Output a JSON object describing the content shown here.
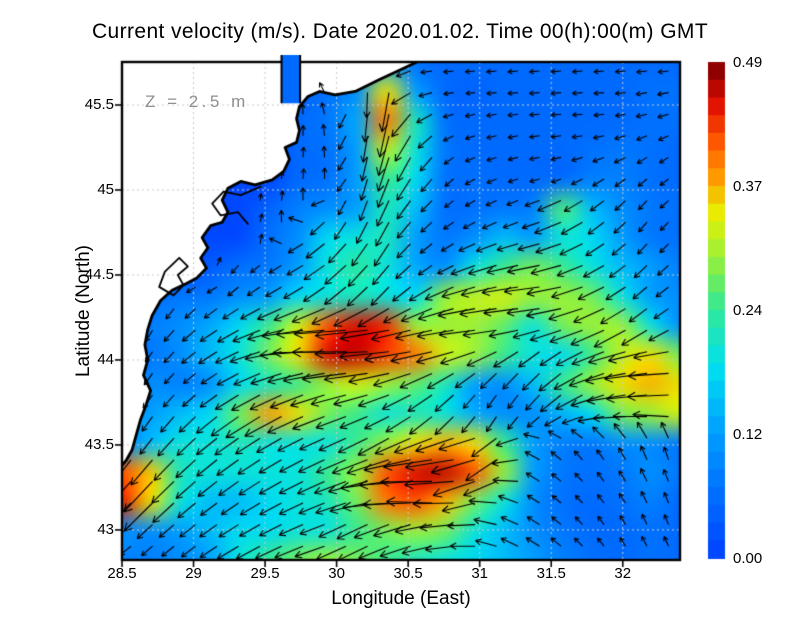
{
  "title": "Current velocity (m/s). Date 2020.01.02. Time 00(h):00(m) GMT",
  "annotation": {
    "text": "Z = 2.5 m",
    "color": "#8f8f8f"
  },
  "axes": {
    "x": {
      "label": "Longitude (East)",
      "range": [
        28.5,
        32.4
      ],
      "ticks": [
        28.5,
        29,
        29.5,
        30,
        30.5,
        31,
        31.5,
        32
      ],
      "tick_labels": [
        "28.5",
        "29",
        "29.5",
        "30",
        "30.5",
        "31",
        "31.5",
        "32"
      ]
    },
    "y": {
      "label": "Latitude (North)",
      "range": [
        42.823,
        45.753
      ],
      "ticks": [
        45.5,
        45,
        44.5,
        44,
        43.5,
        43
      ],
      "tick_labels": [
        "45.5",
        "45",
        "44.5",
        "44",
        "43.5",
        "43"
      ]
    }
  },
  "colorbar": {
    "min": 0,
    "max": 0.49,
    "labels": [
      "0.49",
      "0.37",
      "0.24",
      "0.12",
      "0.00"
    ],
    "stops": [
      [
        0,
        "#0048ff"
      ],
      [
        0.12,
        "#0070ff"
      ],
      [
        0.25,
        "#00a0ff"
      ],
      [
        0.38,
        "#00e0f0"
      ],
      [
        0.5,
        "#30e898"
      ],
      [
        0.6,
        "#90f040"
      ],
      [
        0.7,
        "#e8f000"
      ],
      [
        0.78,
        "#ff9800"
      ],
      [
        0.86,
        "#ff5000"
      ],
      [
        0.93,
        "#e01000"
      ],
      [
        1,
        "#900000"
      ]
    ]
  },
  "style": {
    "grid_color": "#cccccc",
    "coast_color": "#000000",
    "arrow_color": "#000000",
    "land_color": "#ffffff",
    "frame_color": "#000000"
  },
  "chart_data": {
    "type": "heatmap",
    "overlays": [
      "quiver",
      "coastline"
    ],
    "units": "m/s",
    "depth_m": 2.5,
    "date": "2020.01.02",
    "time_gmt": "00:00",
    "grid": {
      "nx": 20,
      "ny": 18,
      "lon": [
        28.5,
        32.4
      ],
      "lat": [
        45.753,
        42.823
      ]
    },
    "magnitude": [
      [
        0,
        0,
        0,
        0,
        0,
        0,
        0.05,
        0.05,
        0.08,
        0.12,
        0.06,
        0.05,
        0.05,
        0.05,
        0.05,
        0.05,
        0.05,
        0.05,
        0.05,
        0.05
      ],
      [
        0,
        0,
        0,
        0,
        0,
        0,
        0.04,
        0.06,
        0.1,
        0.35,
        0.12,
        0.05,
        0.04,
        0.05,
        0.05,
        0.05,
        0.05,
        0.05,
        0.06,
        0.06
      ],
      [
        0,
        0,
        0,
        0,
        0,
        0,
        0.05,
        0.07,
        0.13,
        0.4,
        0.22,
        0.06,
        0.05,
        0.05,
        0.05,
        0.05,
        0.05,
        0.05,
        0.06,
        0.06
      ],
      [
        0,
        0,
        0,
        0,
        0,
        0,
        0.05,
        0.06,
        0.12,
        0.32,
        0.2,
        0.07,
        0.05,
        0.05,
        0.05,
        0.05,
        0.06,
        0.07,
        0.06,
        0.05
      ],
      [
        0,
        0,
        0,
        0,
        0,
        0,
        0.05,
        0.06,
        0.12,
        0.25,
        0.18,
        0.06,
        0.06,
        0.05,
        0.05,
        0.05,
        0.08,
        0.08,
        0.06,
        0.05
      ],
      [
        0,
        0,
        0,
        0,
        0,
        0.04,
        0.08,
        0.1,
        0.12,
        0.22,
        0.15,
        0.06,
        0.06,
        0.07,
        0.08,
        0.26,
        0.15,
        0.1,
        0.07,
        0.06
      ],
      [
        0,
        0,
        0,
        0,
        0,
        0.06,
        0.1,
        0.18,
        0.2,
        0.22,
        0.12,
        0.07,
        0.1,
        0.15,
        0.12,
        0.2,
        0.18,
        0.12,
        0.07,
        0.06
      ],
      [
        0,
        0,
        0,
        0.03,
        0.06,
        0.07,
        0.12,
        0.2,
        0.24,
        0.2,
        0.13,
        0.1,
        0.2,
        0.25,
        0.28,
        0.25,
        0.2,
        0.15,
        0.12,
        0.08
      ],
      [
        0,
        0.05,
        0.07,
        0.07,
        0.1,
        0.12,
        0.18,
        0.2,
        0.22,
        0.2,
        0.18,
        0.3,
        0.32,
        0.33,
        0.3,
        0.3,
        0.28,
        0.2,
        0.12,
        0.1
      ],
      [
        0.04,
        0.08,
        0.1,
        0.13,
        0.18,
        0.25,
        0.33,
        0.42,
        0.46,
        0.44,
        0.3,
        0.3,
        0.3,
        0.27,
        0.2,
        0.28,
        0.3,
        0.3,
        0.2,
        0.1
      ],
      [
        0.06,
        0.07,
        0.1,
        0.15,
        0.2,
        0.28,
        0.35,
        0.46,
        0.47,
        0.43,
        0.4,
        0.33,
        0.3,
        0.25,
        0.2,
        0.18,
        0.25,
        0.32,
        0.35,
        0.28
      ],
      [
        0.07,
        0.1,
        0.08,
        0.1,
        0.18,
        0.22,
        0.25,
        0.3,
        0.33,
        0.3,
        0.27,
        0.22,
        0.12,
        0.1,
        0.15,
        0.25,
        0.3,
        0.35,
        0.37,
        0.35
      ],
      [
        0.1,
        0.12,
        0.15,
        0.18,
        0.28,
        0.38,
        0.35,
        0.28,
        0.25,
        0.2,
        0.22,
        0.2,
        0.13,
        0.1,
        0.1,
        0.14,
        0.18,
        0.28,
        0.3,
        0.33
      ],
      [
        0.08,
        0.15,
        0.2,
        0.2,
        0.22,
        0.2,
        0.2,
        0.2,
        0.25,
        0.3,
        0.35,
        0.37,
        0.35,
        0.25,
        0.12,
        0.08,
        0.07,
        0.1,
        0.1,
        0.07
      ],
      [
        0.42,
        0.36,
        0.22,
        0.2,
        0.2,
        0.2,
        0.2,
        0.25,
        0.3,
        0.42,
        0.46,
        0.47,
        0.42,
        0.3,
        0.12,
        0.07,
        0.06,
        0.07,
        0.1,
        0.07
      ],
      [
        0.45,
        0.35,
        0.2,
        0.15,
        0.15,
        0.18,
        0.2,
        0.22,
        0.28,
        0.4,
        0.42,
        0.37,
        0.28,
        0.2,
        0.1,
        0.06,
        0.05,
        0.06,
        0.08,
        0.05
      ],
      [
        0.1,
        0.1,
        0.12,
        0.15,
        0.18,
        0.18,
        0.2,
        0.2,
        0.25,
        0.28,
        0.3,
        0.28,
        0.2,
        0.15,
        0.1,
        0.07,
        0.05,
        0.05,
        0.06,
        0.05
      ],
      [
        0.08,
        0.08,
        0.1,
        0.12,
        0.2,
        0.25,
        0.28,
        0.3,
        0.28,
        0.25,
        0.22,
        0.2,
        0.18,
        0.15,
        0.12,
        0.08,
        0.06,
        0.05,
        0.06,
        0.05
      ]
    ],
    "direction_deg": [
      [
        270,
        270,
        270,
        270,
        270,
        270,
        270,
        250,
        260,
        265,
        185,
        185,
        185,
        185,
        185,
        185,
        185,
        185,
        185,
        185
      ],
      [
        90,
        90,
        90,
        90,
        90,
        90,
        90,
        120,
        270,
        265,
        200,
        190,
        185,
        185,
        185,
        185,
        185,
        185,
        190,
        190
      ],
      [
        90,
        90,
        90,
        90,
        90,
        90,
        90,
        100,
        265,
        260,
        230,
        200,
        195,
        190,
        185,
        185,
        185,
        190,
        195,
        200
      ],
      [
        85,
        85,
        85,
        85,
        85,
        85,
        85,
        95,
        260,
        255,
        240,
        220,
        200,
        195,
        190,
        190,
        195,
        200,
        210,
        210
      ],
      [
        85,
        85,
        85,
        85,
        85,
        85,
        85,
        90,
        255,
        250,
        235,
        225,
        210,
        200,
        195,
        200,
        210,
        215,
        220,
        215
      ],
      [
        80,
        80,
        80,
        80,
        80,
        80,
        85,
        230,
        250,
        245,
        230,
        220,
        210,
        205,
        200,
        205,
        215,
        225,
        230,
        220
      ],
      [
        70,
        70,
        70,
        70,
        70,
        70,
        210,
        220,
        235,
        240,
        225,
        215,
        205,
        200,
        195,
        200,
        210,
        220,
        230,
        225
      ],
      [
        60,
        60,
        60,
        60,
        230,
        215,
        210,
        215,
        225,
        230,
        220,
        210,
        200,
        195,
        190,
        195,
        205,
        215,
        225,
        220
      ],
      [
        250,
        250,
        230,
        220,
        215,
        210,
        210,
        215,
        220,
        225,
        215,
        205,
        195,
        190,
        185,
        190,
        200,
        210,
        220,
        215
      ],
      [
        260,
        240,
        225,
        215,
        210,
        200,
        190,
        185,
        185,
        190,
        195,
        190,
        185,
        185,
        190,
        195,
        200,
        210,
        215,
        210
      ],
      [
        255,
        235,
        225,
        215,
        205,
        195,
        185,
        180,
        180,
        185,
        190,
        195,
        200,
        210,
        220,
        215,
        205,
        195,
        190,
        185
      ],
      [
        250,
        235,
        225,
        215,
        210,
        205,
        200,
        195,
        190,
        195,
        205,
        215,
        225,
        235,
        230,
        220,
        205,
        190,
        185,
        180
      ],
      [
        245,
        235,
        228,
        220,
        215,
        210,
        205,
        200,
        200,
        205,
        215,
        225,
        235,
        240,
        230,
        215,
        200,
        190,
        185,
        182
      ],
      [
        240,
        232,
        226,
        220,
        215,
        212,
        208,
        205,
        205,
        210,
        200,
        195,
        190,
        220,
        160,
        140,
        130,
        120,
        110,
        100
      ],
      [
        230,
        228,
        224,
        220,
        216,
        212,
        208,
        205,
        200,
        190,
        185,
        180,
        200,
        220,
        150,
        140,
        130,
        120,
        115,
        110
      ],
      [
        225,
        225,
        222,
        218,
        214,
        210,
        206,
        202,
        195,
        185,
        180,
        175,
        195,
        170,
        150,
        140,
        130,
        125,
        115,
        110
      ],
      [
        220,
        222,
        220,
        216,
        212,
        208,
        204,
        200,
        210,
        205,
        200,
        190,
        180,
        160,
        150,
        140,
        130,
        120,
        115,
        110
      ],
      [
        215,
        220,
        218,
        214,
        210,
        206,
        202,
        198,
        205,
        200,
        195,
        190,
        180,
        160,
        150,
        140,
        135,
        125,
        120,
        115
      ]
    ],
    "coastline": [
      [
        30.58,
        45.76
      ],
      [
        30.48,
        45.72
      ],
      [
        30.3,
        45.65
      ],
      [
        30.13,
        45.58
      ],
      [
        29.99,
        45.56
      ],
      [
        29.88,
        45.58
      ],
      [
        29.8,
        45.55
      ],
      [
        29.74,
        45.49
      ],
      [
        29.72,
        45.42
      ],
      [
        29.74,
        45.35
      ],
      [
        29.72,
        45.28
      ],
      [
        29.64,
        45.25
      ],
      [
        29.67,
        45.18
      ],
      [
        29.63,
        45.11
      ],
      [
        29.55,
        45.06
      ],
      [
        29.43,
        45.03
      ],
      [
        29.33,
        45.05
      ],
      [
        29.24,
        45.01
      ],
      [
        29.2,
        44.94
      ],
      [
        29.24,
        44.87
      ],
      [
        29.2,
        44.81
      ],
      [
        29.12,
        44.79
      ],
      [
        29.06,
        44.72
      ],
      [
        29.1,
        44.66
      ],
      [
        29.05,
        44.6
      ],
      [
        29.09,
        44.54
      ],
      [
        29.02,
        44.48
      ],
      [
        28.95,
        44.45
      ],
      [
        28.85,
        44.41
      ],
      [
        28.77,
        44.35
      ],
      [
        28.71,
        44.26
      ],
      [
        28.68,
        44.18
      ],
      [
        28.66,
        44.09
      ],
      [
        28.68,
        44.0
      ],
      [
        28.65,
        43.91
      ],
      [
        28.7,
        43.82
      ],
      [
        28.67,
        43.74
      ],
      [
        28.63,
        43.65
      ],
      [
        28.6,
        43.56
      ],
      [
        28.57,
        43.47
      ],
      [
        28.53,
        43.41
      ],
      [
        28.5,
        43.38
      ]
    ],
    "lagoons": [
      [
        [
          29.47,
          45.02
        ],
        [
          29.33,
          44.97
        ],
        [
          29.21,
          44.99
        ],
        [
          29.13,
          44.92
        ],
        [
          29.19,
          44.85
        ],
        [
          29.31,
          44.87
        ],
        [
          29.38,
          44.8
        ]
      ],
      [
        [
          28.9,
          44.6
        ],
        [
          28.8,
          44.52
        ],
        [
          28.76,
          44.43
        ],
        [
          28.86,
          44.38
        ],
        [
          28.93,
          44.44
        ],
        [
          28.89,
          44.5
        ],
        [
          28.96,
          44.55
        ],
        [
          28.9,
          44.6
        ]
      ]
    ],
    "estuary": {
      "lon": [
        29.615,
        29.745
      ],
      "lat": [
        45.51,
        45.8
      ],
      "value": 0.05
    }
  }
}
